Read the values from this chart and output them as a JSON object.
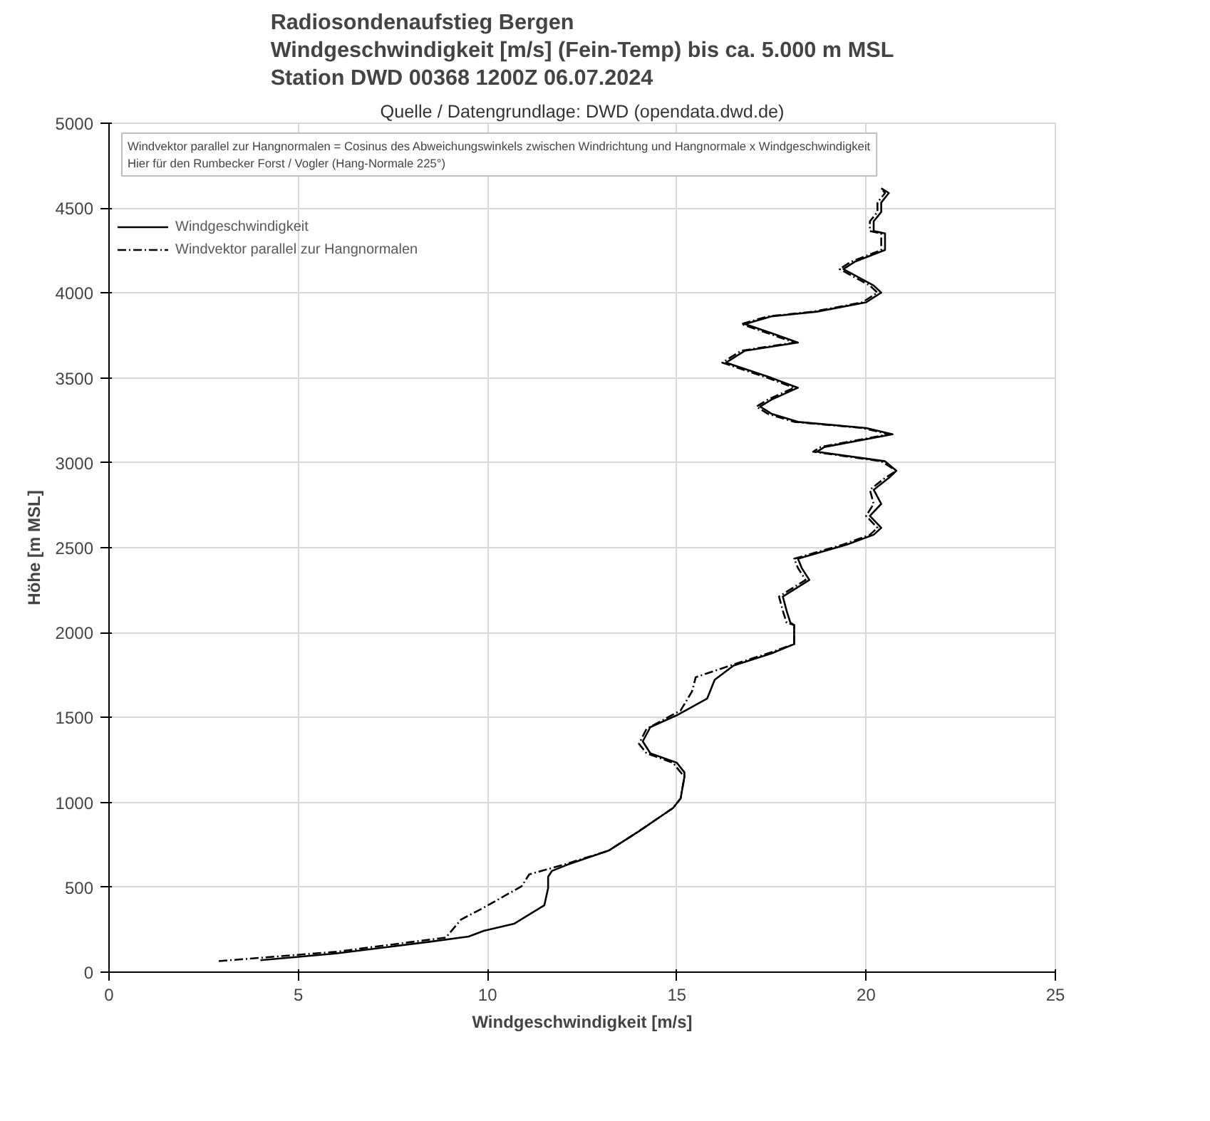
{
  "chart_data": {
    "type": "line",
    "title": "Radiosondenaufstieg Bergen\nWindgeschwindigkeit [m/s] (Fein-Temp) bis ca. 5.000 m MSL\nStation DWD 00368 1200Z 06.07.2024",
    "subtitle": "Quelle / Datengrundlage: DWD (opendata.dwd.de)",
    "xlabel": "Windgeschwindigkeit [m/s]",
    "ylabel": "Höhe [m MSL]",
    "annotations": [
      "Windvektor parallel zur Hangnormalen = Cosinus des Abweichungswinkels zwischen Windrichtung und Hangnormale x Windgeschwindigkeit\nHier für den Rumbecker Forst / Vogler (Hang-Normale 225°)"
    ],
    "xlim": [
      0,
      25
    ],
    "xticks": [
      0,
      5,
      10,
      15,
      20,
      25
    ],
    "ylim": [
      0,
      5000
    ],
    "yticks": [
      0,
      500,
      1000,
      1500,
      2000,
      2500,
      3000,
      3500,
      4000,
      4500,
      5000
    ],
    "grid": true,
    "legend": "top left",
    "series": [
      {
        "name": "Windgeschwindigkeit",
        "color": "#000000",
        "line_style": "solid",
        "x": [
          4.0,
          6.0,
          8.5,
          9.5,
          9.9,
          10.7,
          11.5,
          11.6,
          11.6,
          11.7,
          12.1,
          13.2,
          14.0,
          14.9,
          15.1,
          15.2,
          15.2,
          15.0,
          14.3,
          14.1,
          14.3,
          15.0,
          15.8,
          16.0,
          16.5,
          17.5,
          18.1,
          18.1,
          18.0,
          17.9,
          17.8,
          18.2,
          18.5,
          18.3,
          18.2,
          19.5,
          20.2,
          20.4,
          20.1,
          20.4,
          20.2,
          20.6,
          20.8,
          20.5,
          18.7,
          18.9,
          20.7,
          20.0,
          18.2,
          17.5,
          17.2,
          17.5,
          18.2,
          17.5,
          16.3,
          16.8,
          18.2,
          17.5,
          16.8,
          17.5,
          18.7,
          20.0,
          20.4,
          20.2,
          19.4,
          19.7,
          20.5,
          20.5,
          20.2,
          20.2,
          20.4,
          20.4,
          20.6,
          20.4
        ],
        "values": [
          70,
          110,
          180,
          210,
          243,
          285,
          394,
          495,
          562,
          596,
          632,
          716,
          830,
          967,
          1023,
          1150,
          1177,
          1233,
          1289,
          1359,
          1443,
          1513,
          1611,
          1722,
          1806,
          1877,
          1932,
          2044,
          2058,
          2128,
          2212,
          2268,
          2310,
          2380,
          2435,
          2519,
          2576,
          2617,
          2687,
          2758,
          2841,
          2911,
          2953,
          3009,
          3065,
          3093,
          3168,
          3205,
          3241,
          3289,
          3331,
          3372,
          3442,
          3500,
          3590,
          3660,
          3708,
          3764,
          3817,
          3862,
          3890,
          3945,
          4002,
          4044,
          4141,
          4184,
          4253,
          4351,
          4365,
          4422,
          4477,
          4533,
          4589,
          4617
        ]
      },
      {
        "name": "Windvektor parallel zur Hangnormalen",
        "color": "#000000",
        "line_style": "dashed",
        "x": [
          2.9,
          6.0,
          8.9,
          9.3,
          9.9,
          10.9,
          11.1,
          12.0,
          13.2,
          14.0,
          14.9,
          15.1,
          15.2,
          15.1,
          14.9,
          14.2,
          14.0,
          14.2,
          15.1,
          15.4,
          15.5,
          16.6,
          17.4,
          18.1,
          18.1,
          17.9,
          17.8,
          17.7,
          18.1,
          18.4,
          18.2,
          18.1,
          19.4,
          20.1,
          20.3,
          20.0,
          20.2,
          20.1,
          20.5,
          20.8,
          20.4,
          18.6,
          18.8,
          20.6,
          19.9,
          18.1,
          17.4,
          17.1,
          17.4,
          18.1,
          17.4,
          16.2,
          16.7,
          18.1,
          17.4,
          16.7,
          17.4,
          18.6,
          19.9,
          20.3,
          20.1,
          19.3,
          19.6,
          20.4,
          20.4,
          20.1,
          20.1,
          20.3,
          20.3,
          20.5,
          20.4
        ],
        "values": [
          65,
          120,
          204,
          310,
          380,
          506,
          576,
          632,
          716,
          830,
          967,
          1023,
          1150,
          1177,
          1233,
          1289,
          1345,
          1433,
          1541,
          1653,
          1737,
          1820,
          1877,
          1932,
          2044,
          2058,
          2128,
          2212,
          2268,
          2310,
          2380,
          2435,
          2519,
          2576,
          2617,
          2687,
          2758,
          2841,
          2911,
          2953,
          3009,
          3065,
          3093,
          3168,
          3205,
          3241,
          3289,
          3331,
          3372,
          3442,
          3500,
          3590,
          3660,
          3708,
          3764,
          3817,
          3862,
          3890,
          3945,
          4002,
          4044,
          4141,
          4184,
          4253,
          4351,
          4365,
          4422,
          4477,
          4533,
          4589,
          4617
        ]
      }
    ]
  }
}
